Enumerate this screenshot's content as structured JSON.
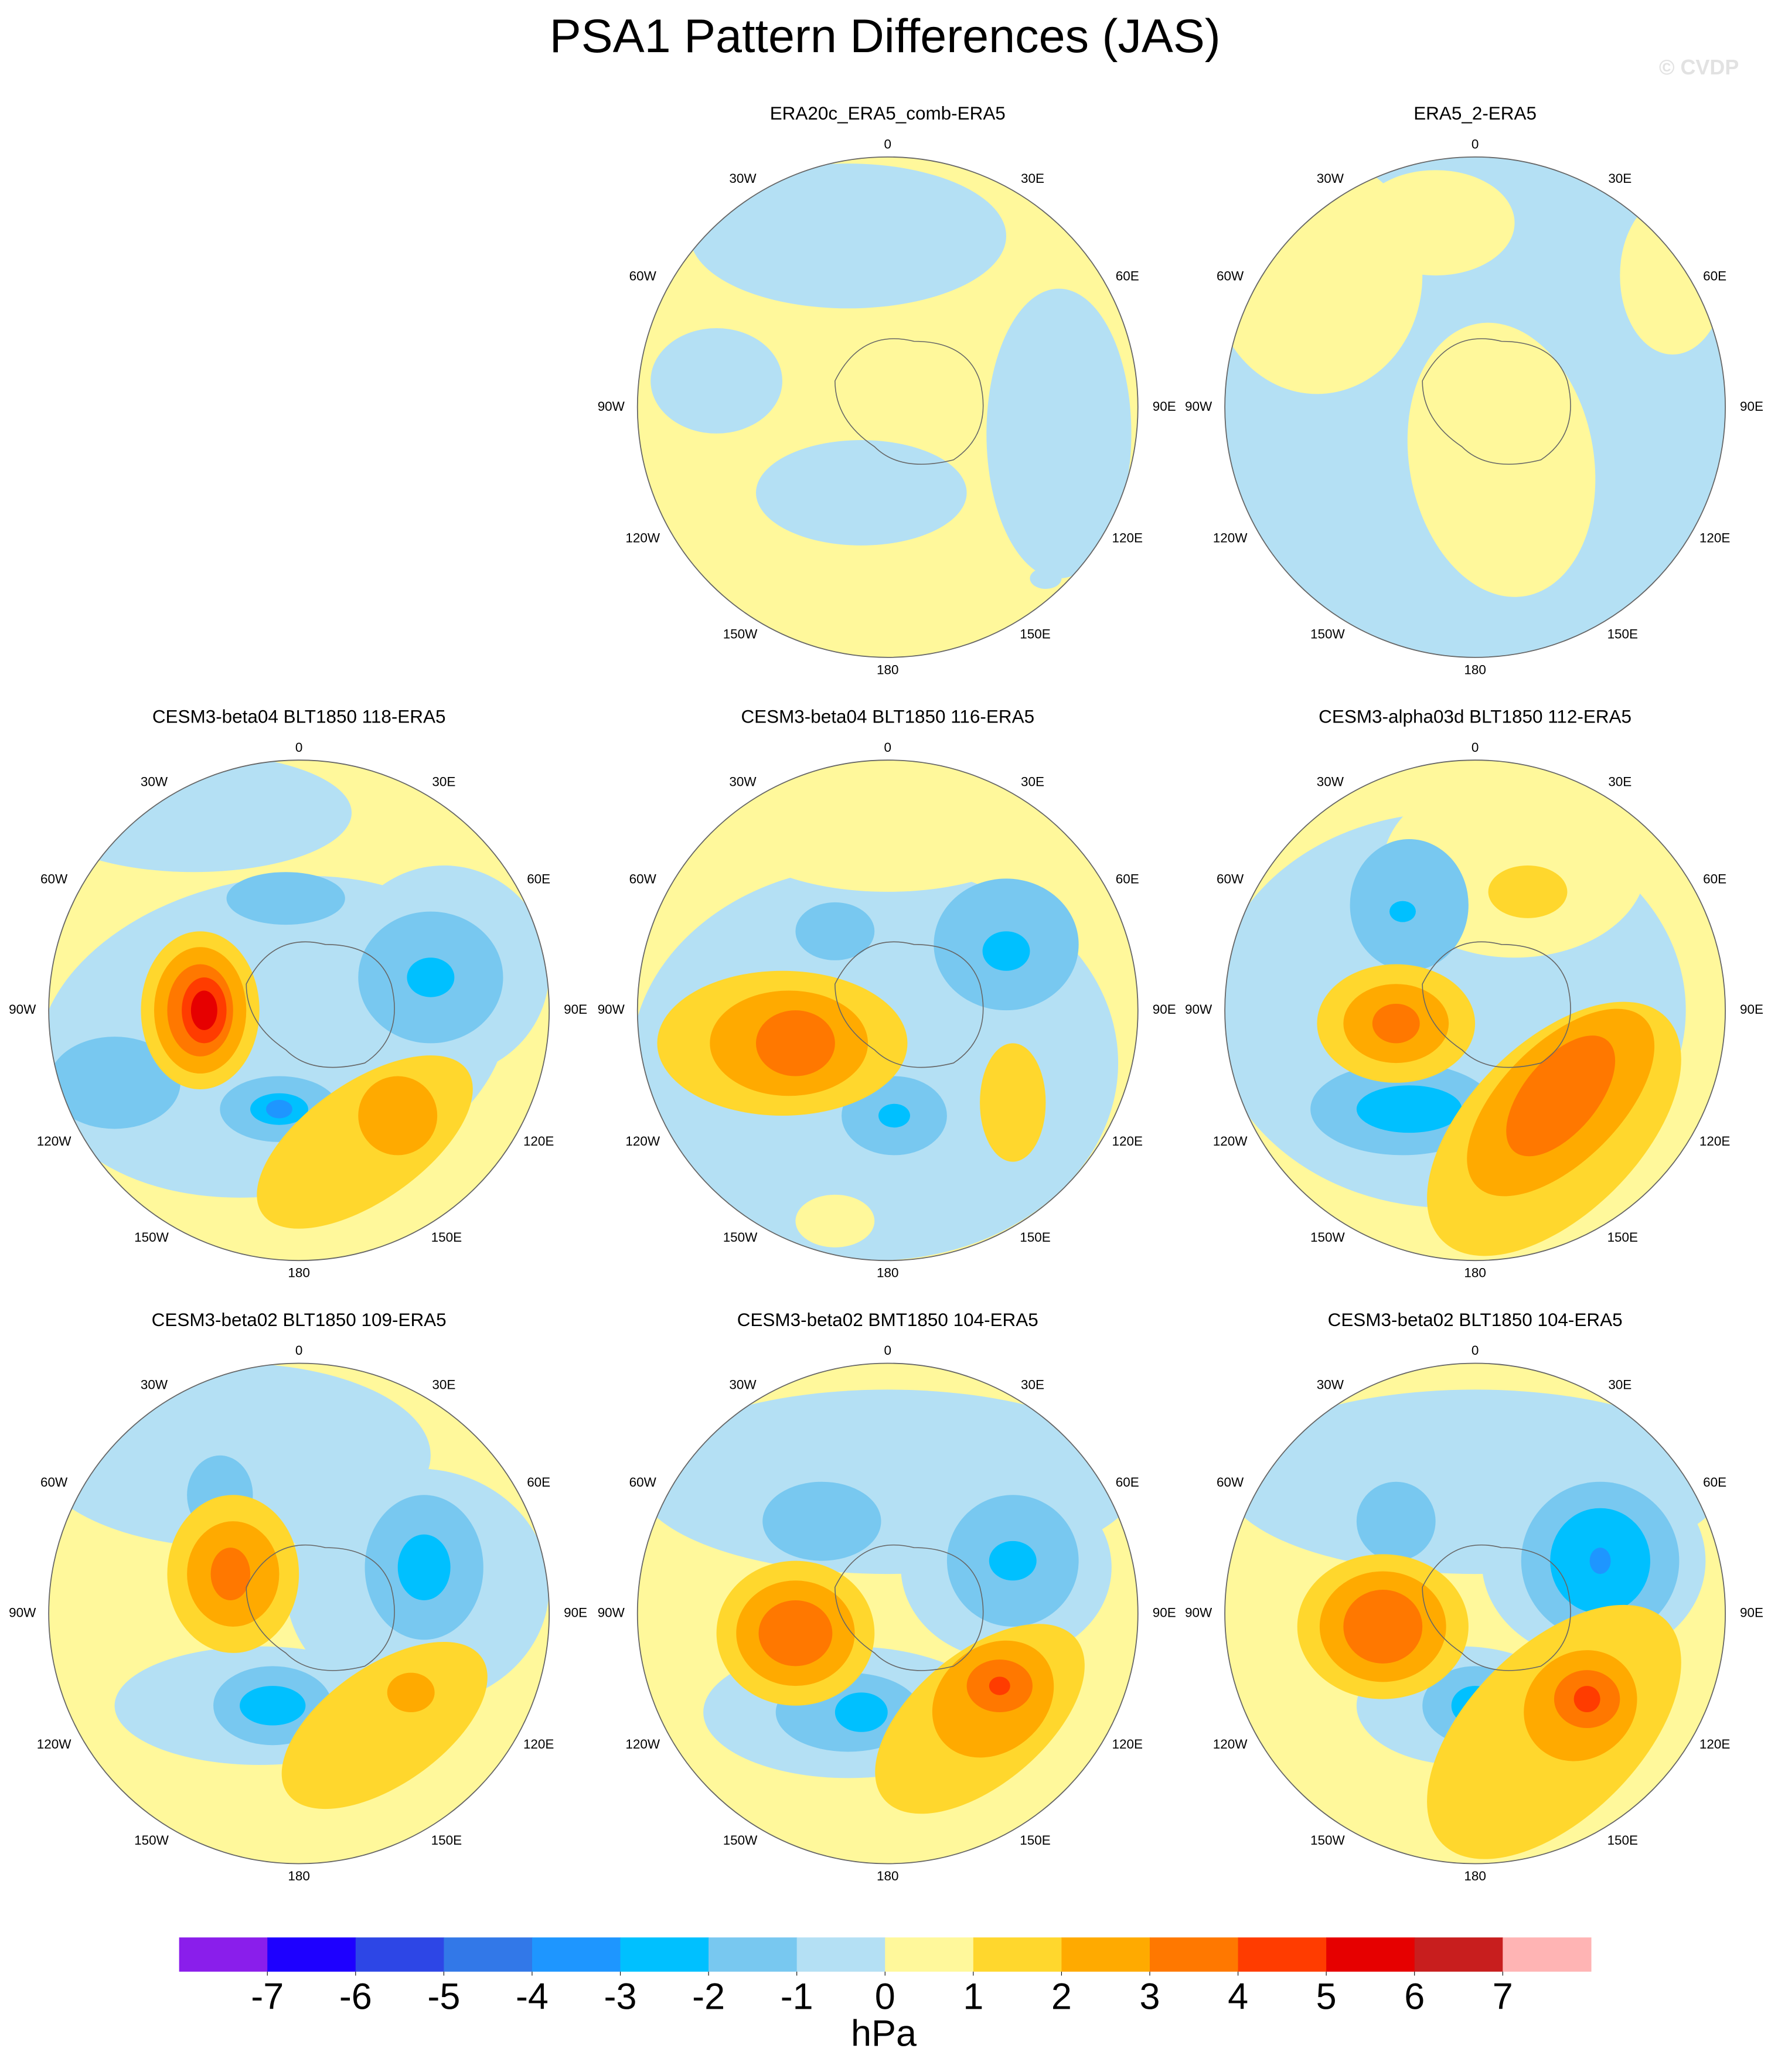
{
  "title": "PSA1 Pattern Differences (JAS)",
  "watermark": "© CVDP",
  "lon_labels": [
    "0",
    "30E",
    "60E",
    "90E",
    "120E",
    "150E",
    "180",
    "150W",
    "120W",
    "90W",
    "60W",
    "30W"
  ],
  "panels": [
    {
      "title": "ERA20c_ERA5_comb-ERA5"
    },
    {
      "title": "ERA5_2-ERA5"
    },
    {
      "title": "CESM3-beta04 BLT1850 118-ERA5"
    },
    {
      "title": "CESM3-beta04 BLT1850 116-ERA5"
    },
    {
      "title": "CESM3-alpha03d BLT1850 112-ERA5"
    },
    {
      "title": "CESM3-beta02 BLT1850 109-ERA5"
    },
    {
      "title": "CESM3-beta02 BMT1850 104-ERA5"
    },
    {
      "title": "CESM3-beta02 BLT1850 104-ERA5"
    }
  ],
  "colorbar": {
    "colors": [
      "#8a1eeb",
      "#1e00ff",
      "#2d46e6",
      "#3278e8",
      "#1e96ff",
      "#00c0ff",
      "#78c8f0",
      "#b4e0f4",
      "#fff89b",
      "#ffd72d",
      "#ffaa00",
      "#ff7800",
      "#ff3c00",
      "#e60000",
      "#c81e1e",
      "#ffb4b4"
    ],
    "ticks": [
      -7,
      -6,
      -5,
      -4,
      -3,
      -2,
      -1,
      0,
      1,
      2,
      3,
      4,
      5,
      6,
      7
    ],
    "label": "hPa"
  }
}
